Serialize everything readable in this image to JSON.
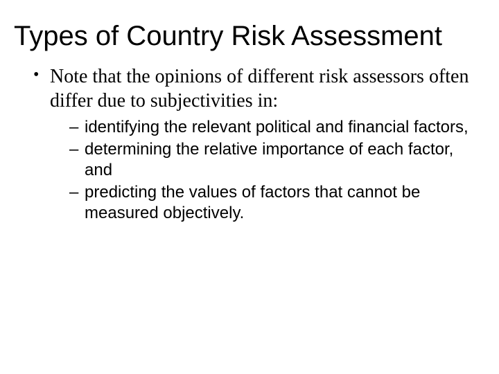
{
  "slide": {
    "title": "Types of Country Risk Assessment",
    "bullets": [
      {
        "text": "Note that the opinions of different risk assessors often differ due to subjectivities in:",
        "sub": [
          "identifying the relevant political and financial factors,",
          "determining the relative importance of each factor, and",
          "predicting the values of factors that cannot be measured objectively."
        ]
      }
    ],
    "colors": {
      "background": "#ffffff",
      "text": "#000000"
    },
    "fonts": {
      "title_family": "Arial",
      "title_size_pt": 40,
      "body_serif_family": "Times New Roman",
      "body_serif_size_pt": 28,
      "body_sans_family": "Arial",
      "body_sans_size_pt": 24
    }
  }
}
